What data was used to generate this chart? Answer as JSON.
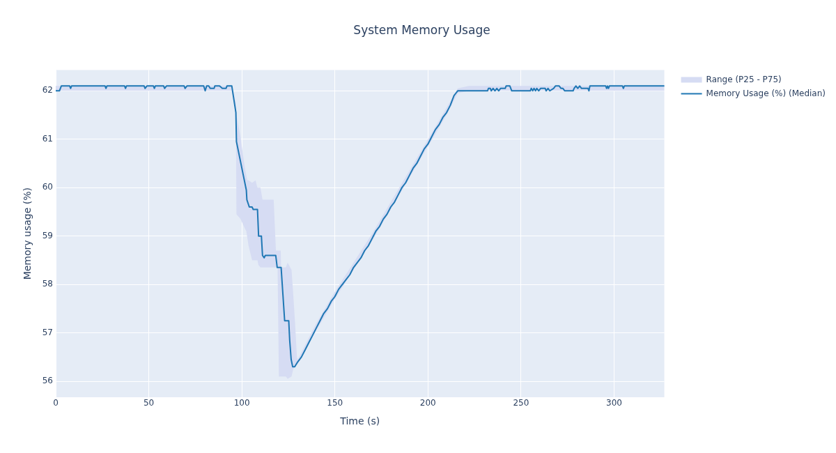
{
  "chart_data": {
    "type": "line",
    "title": "System Memory Usage",
    "xlabel": "Time (s)",
    "ylabel": "Memory usage (%)",
    "xlim": [
      0,
      327
    ],
    "ylim": [
      55.67,
      62.43
    ],
    "xticks": [
      0,
      50,
      100,
      150,
      200,
      250,
      300
    ],
    "yticks": [
      56,
      57,
      58,
      59,
      60,
      61,
      62
    ],
    "grid": true,
    "legend": "top right",
    "marker": "none",
    "line_style": "solid",
    "series": [
      {
        "name": "Range (P25 - P75)",
        "type": "area",
        "color": "#d6dcf3",
        "x": [
          0,
          94.6,
          96.8,
          97.1,
          99.3,
          100.5,
          101.7,
          102.4,
          103,
          103.6,
          105.5,
          107.4,
          108,
          108.4,
          108.9,
          110,
          111.1,
          117.1,
          118.3,
          119.2,
          119.9,
          120.9,
          121.1,
          123.6,
          124.6,
          126.7,
          127.6,
          128.6,
          129.6,
          130,
          140,
          150,
          160,
          170,
          180,
          190,
          200,
          210,
          216,
          222,
          327
        ],
        "values": [
          null,
          null,
          null,
          null,
          null,
          null,
          null,
          null,
          null,
          null,
          null,
          null,
          null,
          null,
          null,
          null,
          null,
          null,
          null,
          null,
          null,
          null,
          null,
          null,
          null,
          null,
          null,
          null,
          null,
          null,
          null,
          null,
          null,
          null,
          null,
          null,
          null,
          null,
          null,
          null,
          null
        ],
        "lower": [
          62.0,
          62.0,
          61.55,
          59.45,
          59.35,
          59.25,
          59.15,
          59.1,
          58.95,
          58.8,
          58.5,
          58.5,
          58.5,
          58.5,
          58.4,
          58.35,
          58.35,
          58.35,
          58.35,
          58.35,
          56.1,
          56.1,
          56.1,
          56.1,
          56.05,
          56.1,
          56.25,
          56.3,
          56.35,
          56.35,
          57.05,
          57.7,
          58.3,
          58.9,
          59.55,
          60.2,
          60.85,
          61.5,
          61.95,
          62.0,
          62.0
        ],
        "upper": [
          62.1,
          62.1,
          61.75,
          61.5,
          61.05,
          60.7,
          60.4,
          60.25,
          60.15,
          60.15,
          60.1,
          60.15,
          60.05,
          60.0,
          60.0,
          60.0,
          59.75,
          59.75,
          58.7,
          58.7,
          58.7,
          58.7,
          58.35,
          58.35,
          58.45,
          58.3,
          57.8,
          57.2,
          56.5,
          56.45,
          57.2,
          57.85,
          58.45,
          59.05,
          59.7,
          60.35,
          61.0,
          61.65,
          62.05,
          62.1,
          62.1
        ]
      },
      {
        "name": "Memory Usage (%) (Median)",
        "type": "line",
        "color": "#1f77b4",
        "x": [
          0,
          2,
          3,
          7.5,
          8,
          8.5,
          26.5,
          27,
          27.5,
          37,
          37.5,
          38,
          47.5,
          48,
          49,
          52.5,
          53,
          53.5,
          58,
          58.5,
          59.5,
          69,
          69.5,
          70.5,
          79.5,
          80.3,
          81.1,
          82.2,
          83,
          85.1,
          85.5,
          88,
          89.5,
          91.5,
          92,
          94.6,
          96.8,
          97.1,
          102.4,
          102.7,
          104,
          105.5,
          106.1,
          108.4,
          109,
          110.5,
          111.1,
          112,
          112.6,
          118.2,
          119,
          121.1,
          123,
          125.2,
          125.7,
          126.5,
          127.3,
          128.4,
          130,
          132,
          134,
          136,
          138,
          140,
          142,
          144,
          146,
          148,
          150,
          152,
          154,
          156,
          158,
          160,
          162,
          164,
          166,
          168,
          170,
          172,
          174,
          176,
          178,
          180,
          182,
          184,
          186,
          188,
          190,
          192,
          194,
          196,
          198,
          200,
          202,
          204,
          206,
          208,
          210,
          212,
          214,
          215,
          216,
          232,
          232.5,
          233.5,
          234,
          235,
          236,
          237,
          238,
          239,
          241.5,
          242,
          244,
          245,
          255,
          255.5,
          256.3,
          257,
          257.8,
          258.5,
          259.5,
          260.5,
          263,
          263.5,
          264.5,
          265.5,
          267.5,
          268.5,
          270.5,
          271.5,
          272.5,
          273.5,
          278,
          278.5,
          279.5,
          280.5,
          281.5,
          282.5,
          286,
          286.5,
          287,
          295.5,
          296,
          296.5,
          297,
          297.5,
          304.5,
          305,
          305.5,
          327
        ],
        "values": [
          62.0,
          62.0,
          62.1,
          62.1,
          62.05,
          62.1,
          62.1,
          62.05,
          62.1,
          62.1,
          62.05,
          62.1,
          62.1,
          62.05,
          62.1,
          62.1,
          62.05,
          62.1,
          62.1,
          62.05,
          62.1,
          62.1,
          62.05,
          62.1,
          62.1,
          62.0,
          62.1,
          62.1,
          62.05,
          62.05,
          62.1,
          62.1,
          62.05,
          62.05,
          62.1,
          62.1,
          61.55,
          60.95,
          59.95,
          59.75,
          59.6,
          59.6,
          59.55,
          59.55,
          59.0,
          59.0,
          58.6,
          58.55,
          58.6,
          58.6,
          58.35,
          58.35,
          57.25,
          57.25,
          56.85,
          56.45,
          56.3,
          56.3,
          56.4,
          56.5,
          56.65,
          56.8,
          56.95,
          57.1,
          57.25,
          57.4,
          57.5,
          57.65,
          57.75,
          57.9,
          58.0,
          58.1,
          58.2,
          58.35,
          58.45,
          58.55,
          58.7,
          58.8,
          58.95,
          59.1,
          59.2,
          59.35,
          59.45,
          59.6,
          59.7,
          59.85,
          60.0,
          60.1,
          60.25,
          60.4,
          60.5,
          60.65,
          60.8,
          60.9,
          61.05,
          61.2,
          61.3,
          61.45,
          61.55,
          61.7,
          61.9,
          61.95,
          62.0,
          62.0,
          62.05,
          62.05,
          62.0,
          62.05,
          62.0,
          62.05,
          62.0,
          62.05,
          62.05,
          62.1,
          62.1,
          62.0,
          62.0,
          62.05,
          62.0,
          62.05,
          62.0,
          62.05,
          62.0,
          62.05,
          62.05,
          62.0,
          62.05,
          62.0,
          62.05,
          62.1,
          62.1,
          62.05,
          62.05,
          62.0,
          62.0,
          62.05,
          62.1,
          62.05,
          62.1,
          62.05,
          62.05,
          62.0,
          62.1,
          62.1,
          62.05,
          62.1,
          62.05,
          62.1,
          62.1,
          62.05,
          62.1,
          62.1
        ]
      }
    ]
  }
}
